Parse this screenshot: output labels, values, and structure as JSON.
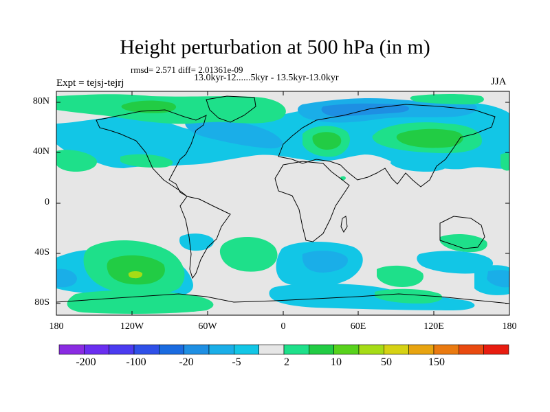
{
  "title": "Height perturbation at 500 hPa (in m)",
  "stats": "rmsd= 2.571 diff= 2.01361e-09",
  "period": "13.0kyr-12......5kyr - 13.5kyr-13.0kyr",
  "expt": "Expt = tejsj-tejrj",
  "season": "JJA",
  "lat_labels": [
    "80N",
    "40N",
    "0",
    "40S",
    "80S"
  ],
  "lon_labels": [
    "180",
    "120W",
    "60W",
    "0",
    "60E",
    "120E",
    "180"
  ],
  "colorbar": {
    "labels": [
      "-200",
      "-100",
      "-20",
      "-5",
      "2",
      "10",
      "50",
      "150"
    ],
    "colors": [
      "#8a2be2",
      "#6a2ef0",
      "#4b3bf0",
      "#2f50e8",
      "#1a6be0",
      "#1e8fe3",
      "#1aaee8",
      "#12c6e6",
      "#e6e6e6",
      "#1ee08a",
      "#22cc44",
      "#58d21c",
      "#a6dc16",
      "#d6d214",
      "#e8a410",
      "#ea7a10",
      "#e94a10",
      "#e81c10"
    ]
  },
  "colors": {
    "background": "#e6e6e6",
    "neg_light": "#12c6e6",
    "neg_mid": "#1aaee8",
    "neg_dark": "#1e8fe3",
    "pos_light": "#1ee08a",
    "pos_mid": "#22cc44",
    "pos_strong": "#a6dc16"
  }
}
